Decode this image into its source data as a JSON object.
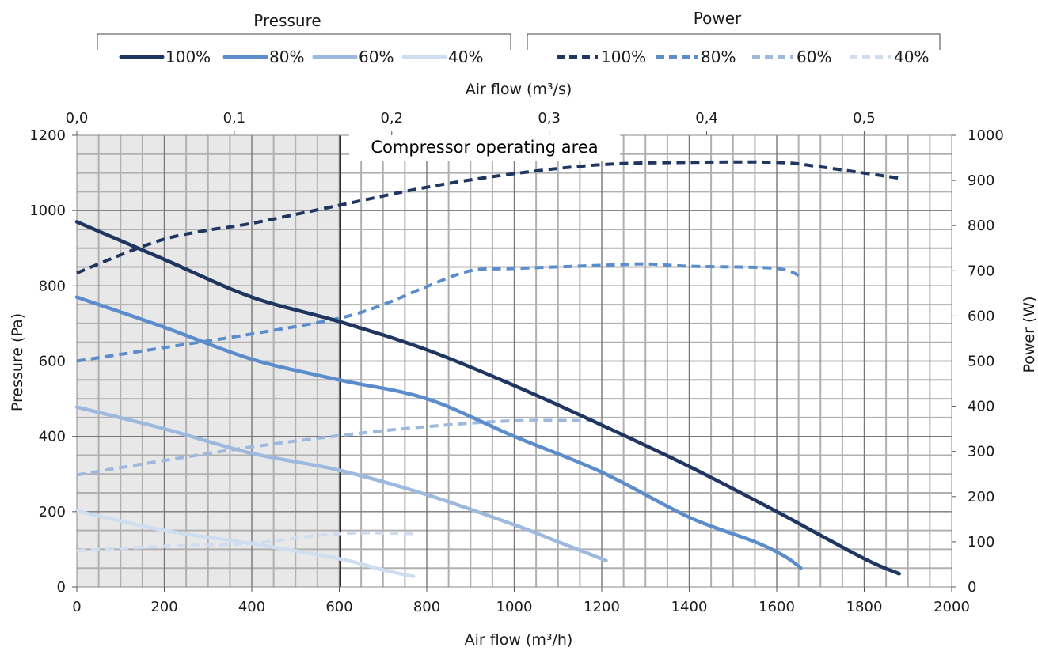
{
  "chart_data": {
    "type": "line",
    "legend": {
      "pressure_title": "Pressure",
      "power_title": "Power",
      "placement": "top"
    },
    "annotation": "Compressor operating area",
    "shaded_region": {
      "x_from": 0,
      "x_to": 600
    },
    "x_axis": {
      "label": "Air flow (m³/h)",
      "range": [
        0,
        2000
      ],
      "ticks": [
        "0",
        "200",
        "400",
        "600",
        "800",
        "1000",
        "1200",
        "1400",
        "1600",
        "1800",
        "2000"
      ]
    },
    "x2_axis": {
      "label": "Air flow (m³/s)",
      "range": [
        0,
        0.5556
      ],
      "ticks": [
        "0,0",
        "0,1",
        "0,2",
        "0,3",
        "0,4",
        "0,5"
      ]
    },
    "y_axis": {
      "label": "Pressure (Pa)",
      "range": [
        0,
        1200
      ],
      "ticks": [
        "0",
        "200",
        "400",
        "600",
        "800",
        "1000",
        "1200"
      ]
    },
    "y2_axis": {
      "label": "Power (W)",
      "range": [
        0,
        1000
      ],
      "ticks": [
        "0",
        "100",
        "200",
        "300",
        "400",
        "500",
        "600",
        "700",
        "800",
        "900",
        "1000"
      ]
    },
    "grid": true,
    "colors": {
      "100%": "#1f3660",
      "80%": "#5b8ccb",
      "60%": "#9db9de",
      "40%": "#cfddf0"
    },
    "pressure_series": [
      {
        "name": "100%",
        "points": [
          [
            0,
            970
          ],
          [
            200,
            870
          ],
          [
            400,
            770
          ],
          [
            600,
            705
          ],
          [
            800,
            630
          ],
          [
            1000,
            535
          ],
          [
            1200,
            430
          ],
          [
            1400,
            320
          ],
          [
            1600,
            200
          ],
          [
            1800,
            75
          ],
          [
            1880,
            35
          ]
        ]
      },
      {
        "name": "80%",
        "points": [
          [
            0,
            770
          ],
          [
            200,
            690
          ],
          [
            400,
            605
          ],
          [
            600,
            550
          ],
          [
            800,
            500
          ],
          [
            1000,
            400
          ],
          [
            1200,
            305
          ],
          [
            1400,
            185
          ],
          [
            1550,
            120
          ],
          [
            1620,
            80
          ],
          [
            1655,
            50
          ]
        ]
      },
      {
        "name": "60%",
        "points": [
          [
            0,
            478
          ],
          [
            200,
            420
          ],
          [
            400,
            355
          ],
          [
            600,
            310
          ],
          [
            800,
            245
          ],
          [
            1000,
            165
          ],
          [
            1100,
            120
          ],
          [
            1210,
            70
          ]
        ]
      },
      {
        "name": "40%",
        "points": [
          [
            0,
            202
          ],
          [
            200,
            150
          ],
          [
            400,
            115
          ],
          [
            600,
            75
          ],
          [
            700,
            45
          ],
          [
            770,
            28
          ]
        ]
      }
    ],
    "power_series": [
      {
        "name": "100%",
        "points": [
          [
            0,
            695
          ],
          [
            100,
            735
          ],
          [
            200,
            770
          ],
          [
            300,
            790
          ],
          [
            400,
            805
          ],
          [
            600,
            845
          ],
          [
            800,
            885
          ],
          [
            1000,
            915
          ],
          [
            1200,
            935
          ],
          [
            1400,
            940
          ],
          [
            1600,
            940
          ],
          [
            1700,
            930
          ],
          [
            1880,
            905
          ]
        ]
      },
      {
        "name": "80%",
        "points": [
          [
            0,
            500
          ],
          [
            200,
            530
          ],
          [
            400,
            560
          ],
          [
            600,
            595
          ],
          [
            700,
            625
          ],
          [
            800,
            665
          ],
          [
            900,
            700
          ],
          [
            1000,
            705
          ],
          [
            1200,
            712
          ],
          [
            1300,
            715
          ],
          [
            1400,
            710
          ],
          [
            1600,
            705
          ],
          [
            1660,
            683
          ]
        ]
      },
      {
        "name": "60%",
        "points": [
          [
            0,
            248
          ],
          [
            200,
            280
          ],
          [
            400,
            310
          ],
          [
            600,
            335
          ],
          [
            800,
            355
          ],
          [
            1000,
            368
          ],
          [
            1200,
            368
          ]
        ]
      },
      {
        "name": "40%",
        "points": [
          [
            0,
            80
          ],
          [
            200,
            90
          ],
          [
            400,
            97
          ],
          [
            600,
            118
          ],
          [
            780,
            118
          ]
        ]
      }
    ]
  }
}
